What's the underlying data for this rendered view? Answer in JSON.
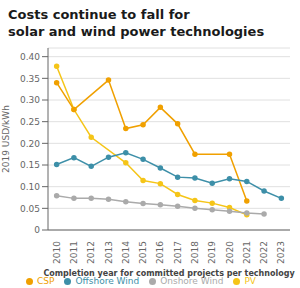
{
  "chart_data": {
    "type": "line",
    "title": "Costs continue to fall for\nsolar and wind power technologies",
    "xlabel": "Completion year for committed projects per technology",
    "ylabel": "2019 USD/kWh",
    "series": [
      {
        "name": "PV",
        "color": "#F5C518",
        "x": [
          2010,
          2011,
          2012,
          2014,
          2015,
          2016,
          2017,
          2018,
          2019,
          2020,
          2021
        ],
        "values": [
          0.378,
          0.278,
          0.214,
          0.155,
          0.114,
          0.107,
          0.082,
          0.068,
          0.062,
          0.052,
          0.035
        ]
      },
      {
        "name": "CSP",
        "color": "#F0A000",
        "x": [
          2010,
          2011,
          2013,
          2014,
          2015,
          2016,
          2017,
          2018,
          2020,
          2021
        ],
        "values": [
          0.34,
          0.278,
          0.346,
          0.234,
          0.243,
          0.283,
          0.245,
          0.175,
          0.175,
          0.067
        ]
      },
      {
        "name": "Onshore Wind",
        "color": "#AAAAAA",
        "x": [
          2010,
          2011,
          2012,
          2013,
          2014,
          2015,
          2016,
          2017,
          2018,
          2019,
          2020,
          2021,
          2022
        ],
        "values": [
          0.079,
          0.073,
          0.073,
          0.071,
          0.065,
          0.061,
          0.058,
          0.055,
          0.05,
          0.047,
          0.043,
          0.039,
          0.037
        ]
      },
      {
        "name": "Offshore Wind",
        "color": "#3D8FA8",
        "x": [
          2010,
          2011,
          2012,
          2013,
          2014,
          2015,
          2016,
          2017,
          2018,
          2019,
          2020,
          2021,
          2022,
          2023
        ],
        "values": [
          0.151,
          0.167,
          0.147,
          0.168,
          0.178,
          0.163,
          0.143,
          0.122,
          0.12,
          0.108,
          0.118,
          0.112,
          0.09,
          0.073
        ]
      }
    ],
    "xlim": [
      2009.5,
      2023.5
    ],
    "xticks": [
      2010,
      2011,
      2012,
      2013,
      2014,
      2015,
      2016,
      2017,
      2018,
      2019,
      2020,
      2021,
      2022,
      2023
    ],
    "ylim": [
      0,
      0.42
    ],
    "yticks": [
      0,
      0.05,
      {
        "value": 0.1,
        "label": "0.10"
      },
      0.15,
      {
        "value": 0.2,
        "label": "0.20"
      },
      0.25,
      {
        "value": 0.3,
        "label": "0.30"
      },
      0.35,
      {
        "value": 0.4,
        "label": "0.40"
      }
    ],
    "grid": true,
    "legend": "bottom",
    "marker": "circle"
  }
}
